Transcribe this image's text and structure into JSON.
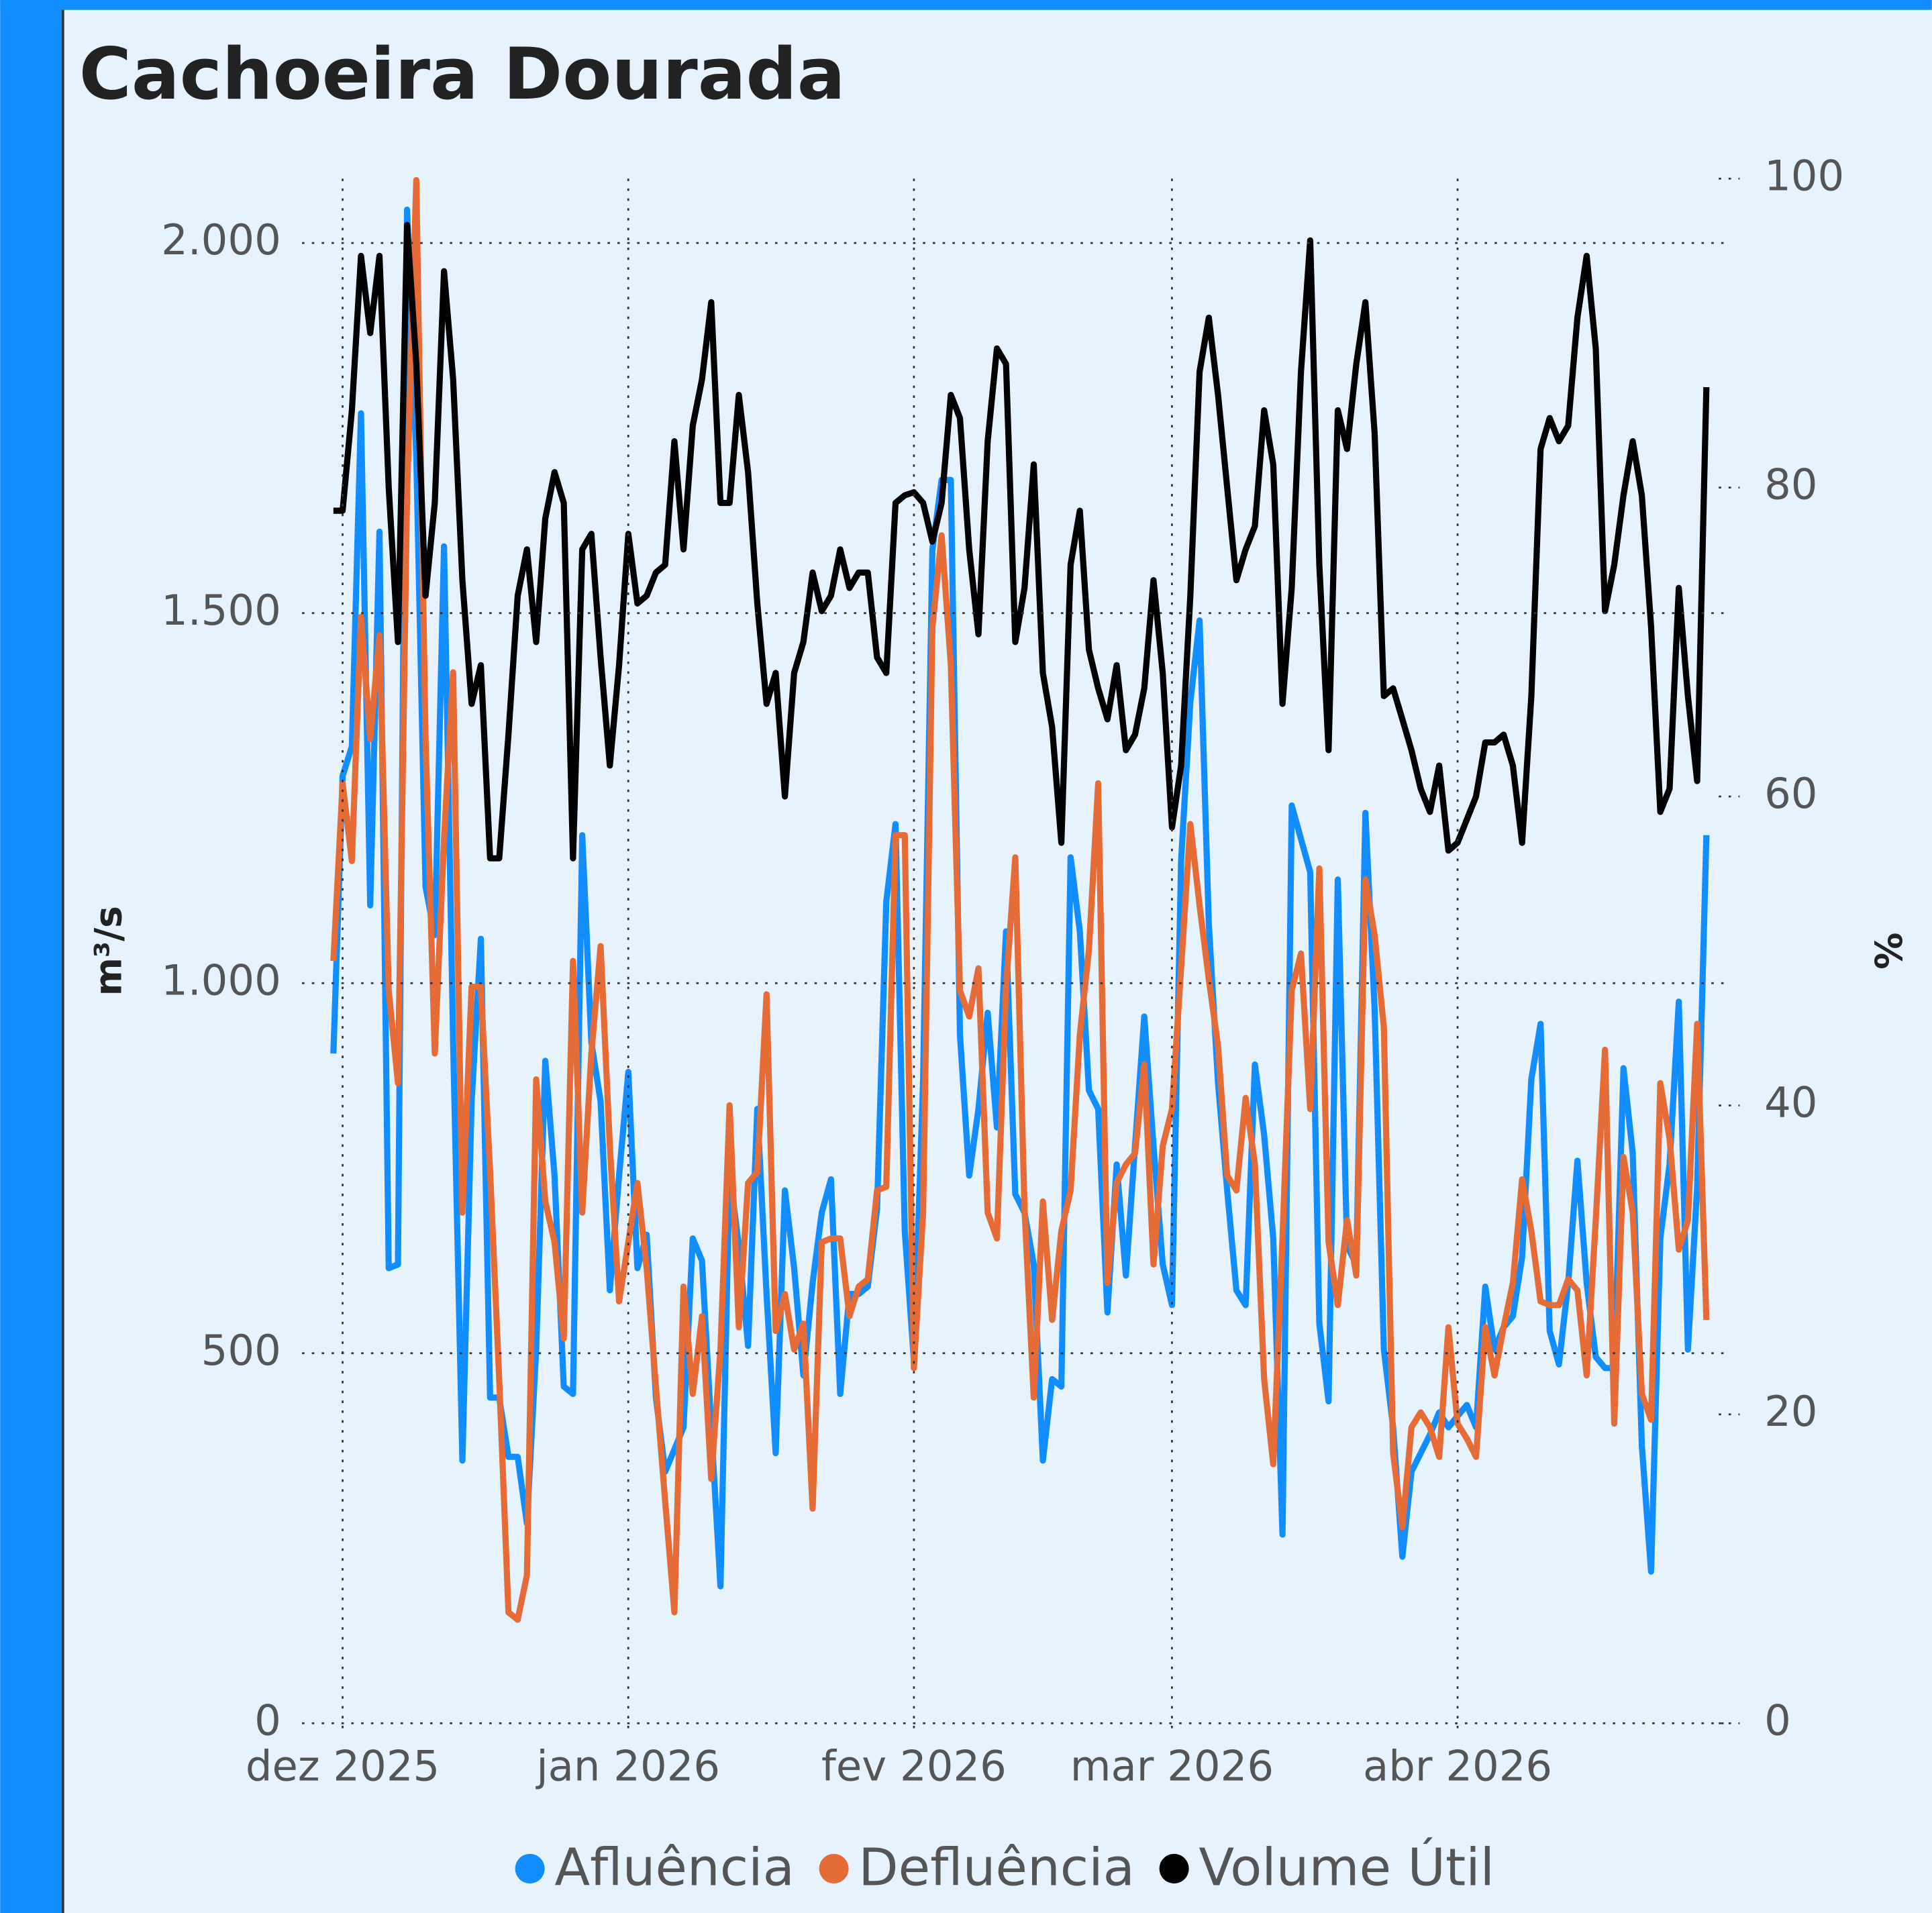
{
  "chart_data": {
    "type": "line",
    "title": "Cachoeira Dourada",
    "y_label": "m³/s",
    "y2_label": "%",
    "categories": [
      null,
      "dez 2025",
      null,
      null,
      null,
      null,
      null,
      null,
      null,
      null,
      null,
      null,
      null,
      null,
      null,
      null,
      null,
      null,
      null,
      null,
      null,
      null,
      null,
      null,
      null,
      null,
      null,
      null,
      null,
      null,
      null,
      null,
      "jan 2026",
      null,
      null,
      null,
      null,
      null,
      null,
      null,
      null,
      null,
      null,
      null,
      null,
      null,
      null,
      null,
      null,
      null,
      null,
      null,
      null,
      null,
      null,
      null,
      null,
      null,
      null,
      null,
      null,
      null,
      null,
      "fev 2026",
      null,
      null,
      null,
      null,
      null,
      null,
      null,
      null,
      null,
      null,
      null,
      null,
      null,
      null,
      null,
      null,
      null,
      null,
      null,
      null,
      null,
      null,
      null,
      null,
      null,
      null,
      null,
      "mar 2026",
      null,
      null,
      null,
      null,
      null,
      null,
      null,
      null,
      null,
      null,
      null,
      null,
      null,
      null,
      null,
      null,
      null,
      null,
      null,
      null,
      null,
      null,
      null,
      null,
      null,
      null,
      null,
      null,
      null,
      null,
      "abr 2026",
      null,
      null,
      null,
      null,
      null,
      null,
      null,
      null,
      null,
      null,
      null,
      null,
      null,
      null,
      null,
      null,
      null,
      null,
      null,
      null,
      null,
      null,
      null,
      null,
      null,
      null,
      null
    ],
    "ylim": [
      0,
      2087
    ],
    "yticks": [
      0,
      500,
      {
        "value": 1000,
        "label": "1.000"
      },
      {
        "value": 1500,
        "label": "1.500"
      },
      {
        "value": 2000,
        "label": "2.000"
      }
    ],
    "y2lim": [
      0,
      100
    ],
    "y2ticks": [
      0,
      20,
      40,
      60,
      80,
      100
    ],
    "grid": true,
    "legend": "bottom",
    "series": [
      {
        "name": "Afluência",
        "color": "#118dff",
        "values": [
          905,
          1280,
          1320,
          1770,
          1105,
          1610,
          615,
          620,
          2045,
          1710,
          1130,
          1065,
          1590,
          920,
          355,
          840,
          1060,
          440,
          440,
          360,
          360,
          270,
          505,
          895,
          740,
          455,
          445,
          1200,
          920,
          840,
          585,
          740,
          880,
          615,
          660,
          440,
          340,
          370,
          400,
          655,
          625,
          400,
          185,
          745,
          645,
          510,
          830,
          580,
          365,
          720,
          615,
          470,
          595,
          690,
          735,
          445,
          580,
          580,
          590,
          695,
          1110,
          1215,
          665,
          490,
          870,
          1585,
          1680,
          1680,
          930,
          740,
          830,
          960,
          805,
          1070,
          715,
          690,
          620,
          355,
          465,
          455,
          1170,
          1070,
          855,
          830,
          555,
          755,
          605,
          780,
          955,
          780,
          620,
          565,
          1165,
          1380,
          1490,
          1080,
          865,
          720,
          585,
          565,
          890,
          795,
          655,
          255,
          1240,
          1195,
          1150,
          540,
          435,
          1140,
          645,
          620,
          1230,
          965,
          505,
          400,
          225,
          340,
          365,
          390,
          420,
          400,
          415,
          430,
          400,
          590,
          505,
          535,
          550,
          630,
          870,
          945,
          530,
          485,
          595,
          760,
          595,
          495,
          480,
          480,
          885,
          770,
          375,
          205,
          655,
          755,
          975,
          505,
          725,
          1200
        ]
      },
      {
        "name": "Defluência",
        "color": "#e66c37",
        "values": [
          1030,
          1270,
          1165,
          1495,
          1330,
          1470,
          990,
          865,
          1660,
          2085,
          1330,
          905,
          1195,
          1420,
          690,
          995,
          995,
          745,
          465,
          150,
          140,
          200,
          870,
          705,
          650,
          520,
          1030,
          690,
          905,
          1050,
          780,
          570,
          650,
          730,
          615,
          455,
          300,
          150,
          590,
          445,
          550,
          330,
          505,
          835,
          535,
          730,
          745,
          985,
          530,
          580,
          505,
          540,
          290,
          650,
          655,
          655,
          550,
          590,
          600,
          720,
          725,
          1200,
          1200,
          480,
          690,
          1480,
          1605,
          1430,
          990,
          955,
          1020,
          690,
          655,
          995,
          1170,
          695,
          440,
          705,
          545,
          665,
          720,
          930,
          1045,
          1270,
          595,
          730,
          755,
          770,
          890,
          620,
          780,
          830,
          1020,
          1215,
          1105,
          1005,
          915,
          740,
          720,
          845,
          755,
          465,
          350,
          655,
          990,
          1040,
          830,
          1155,
          650,
          565,
          680,
          605,
          1140,
          1065,
          940,
          365,
          265,
          400,
          420,
          400,
          360,
          535,
          405,
          385,
          360,
          535,
          470,
          535,
          595,
          735,
          665,
          570,
          565,
          565,
          600,
          585,
          470,
          680,
          910,
          405,
          765,
          690,
          445,
          410,
          865,
          790,
          640,
          680,
          945,
          545
        ]
      },
      {
        "name": "Volume Útil",
        "color": "#000000",
        "axis": "y2",
        "values": [
          78.5,
          78.5,
          85,
          95,
          90,
          95,
          80,
          70,
          97,
          88,
          73,
          79,
          94,
          87,
          74,
          66,
          68.5,
          56,
          56,
          64,
          73,
          76,
          70,
          78,
          81,
          79,
          56,
          76,
          77,
          69,
          62,
          68.5,
          77,
          72.5,
          73,
          74.5,
          75,
          83,
          76,
          84,
          87,
          92,
          79,
          79,
          86,
          81,
          72.5,
          66,
          68,
          60,
          68,
          70,
          74.5,
          72,
          73,
          76,
          73.5,
          74.5,
          74.5,
          69,
          68,
          79,
          79.5,
          79.7,
          79,
          76.5,
          79,
          86,
          84.5,
          76,
          70.5,
          83,
          89,
          88,
          70,
          73.5,
          81.5,
          68,
          64.5,
          57,
          75,
          78.5,
          69.5,
          67,
          65,
          68.5,
          63,
          64,
          67,
          74,
          68,
          58,
          62,
          73,
          87.5,
          91,
          86,
          80,
          74,
          76,
          77.5,
          85,
          81.5,
          66,
          73.5,
          87.5,
          96,
          75,
          63,
          85,
          82.5,
          88,
          92,
          83.5,
          66.5,
          67,
          65,
          63,
          60.5,
          59,
          62,
          56.5,
          57,
          58.5,
          60,
          63.5,
          63.5,
          64,
          62,
          57,
          66.5,
          82.5,
          84.5,
          83,
          84,
          91,
          95,
          89,
          72,
          75,
          79.5,
          83,
          79.5,
          71,
          59,
          60.5,
          73.5,
          66.5,
          61,
          86.5
        ]
      }
    ]
  }
}
